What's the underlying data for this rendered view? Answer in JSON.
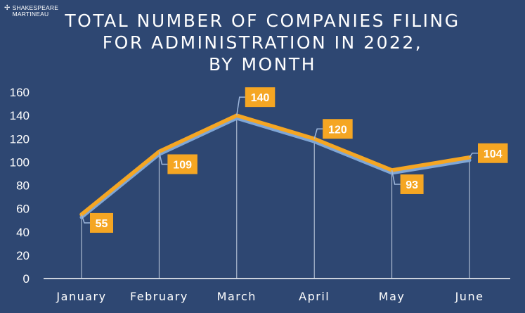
{
  "brand": {
    "name_line1": "SHAKESPEARE",
    "name_line2": "MARTINEAU",
    "logo_icon": "cross-star-icon"
  },
  "chart_data": {
    "type": "line",
    "title": "TOTAL NUMBER OF COMPANIES FILING\nFOR ADMINISTRATION IN 2022,\nBY MONTH",
    "categories": [
      "January",
      "February",
      "March",
      "April",
      "May",
      "June"
    ],
    "series": [
      {
        "values": [
          55,
          109,
          140,
          120,
          93,
          104
        ]
      }
    ],
    "data_labels": [
      "55",
      "109",
      "140",
      "120",
      "93",
      "104"
    ],
    "ylim": [
      0,
      160
    ],
    "yticks": [
      0,
      20,
      40,
      60,
      80,
      100,
      120,
      140,
      160
    ],
    "grid": false,
    "colors": {
      "background": "#2e4772",
      "line": "#f5a623",
      "line_shadow": "#7fa6d6",
      "label_bg": "#f5a623",
      "label_text": "#ffffff",
      "leader": "#9fb8dd"
    }
  }
}
